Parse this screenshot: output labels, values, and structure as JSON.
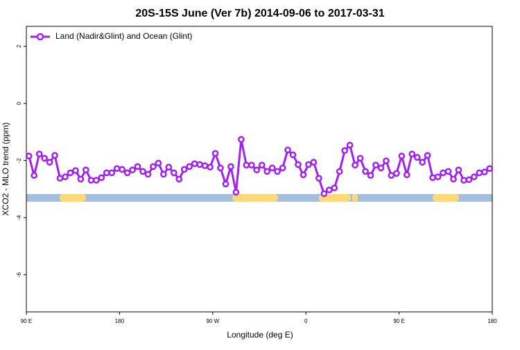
{
  "chart_data": {
    "type": "line",
    "title": "20S-15S June (Ver 7b)   2014-09-06 to 2017-03-31",
    "x_label": "Longitude (deg E)",
    "y_label": "XCO2 - MLO trend (ppm)",
    "x": [
      92.5,
      97.5,
      102.5,
      107.5,
      112.5,
      117.5,
      122.5,
      127.5,
      132.5,
      137.5,
      142.5,
      147.5,
      152.5,
      157.5,
      162.5,
      167.5,
      172.5,
      177.5,
      182.5,
      187.5,
      192.5,
      197.5,
      202.5,
      207.5,
      212.5,
      217.5,
      222.5,
      227.5,
      232.5,
      237.5,
      242.5,
      247.5,
      252.5,
      257.5,
      262.5,
      267.5,
      272.5,
      277.5,
      282.5,
      287.5,
      292.5,
      297.5,
      302.5,
      307.5,
      312.5,
      317.5,
      322.5,
      327.5,
      332.5,
      337.5,
      342.5,
      347.5,
      352.5,
      357.5,
      362.5,
      367.5,
      372.5,
      377.5,
      382.5,
      387.5,
      392.5,
      397.5,
      402.5,
      407.5,
      412.5,
      417.5,
      422.5,
      427.5,
      432.5,
      437.5,
      442.5,
      447.5,
      452.5,
      457.5,
      462.5,
      467.5,
      472.5,
      477.5,
      482.5,
      487.5,
      492.5,
      497.5,
      502.5,
      507.5,
      512.5,
      517.5,
      522.5,
      527.5,
      532.5,
      537.5
    ],
    "series": [
      {
        "name": "Land (Nadir&Glint) and Ocean (Glint)",
        "color": "#a020f0",
        "values": [
          -1.84,
          -2.52,
          -1.77,
          -1.92,
          -2.06,
          -1.82,
          -2.62,
          -2.57,
          -2.43,
          -2.35,
          -2.65,
          -2.33,
          -2.69,
          -2.69,
          -2.6,
          -2.43,
          -2.43,
          -2.28,
          -2.31,
          -2.43,
          -2.33,
          -2.21,
          -2.38,
          -2.48,
          -2.21,
          -2.09,
          -2.48,
          -2.23,
          -2.43,
          -2.65,
          -2.31,
          -2.21,
          -2.11,
          -2.14,
          -2.18,
          -2.23,
          -1.75,
          -2.26,
          -2.82,
          -2.21,
          -3.11,
          -1.26,
          -2.16,
          -2.16,
          -2.33,
          -2.16,
          -2.38,
          -2.26,
          -2.38,
          -2.26,
          -1.63,
          -1.8,
          -2.14,
          -2.5,
          -2.14,
          -2.06,
          -2.62,
          -3.16,
          -3.03,
          -2.96,
          -2.38,
          -1.65,
          -1.46,
          -2.16,
          -1.92,
          -2.38,
          -2.52,
          -2.16,
          -2.26,
          -2.01,
          -2.52,
          -2.45,
          -1.84,
          -2.5,
          -1.77,
          -1.89,
          -2.06,
          -1.82,
          -2.6,
          -2.57,
          -2.43,
          -2.38,
          -2.65,
          -2.33,
          -2.69,
          -2.67,
          -2.57,
          -2.43,
          -2.4,
          -2.28
        ]
      }
    ],
    "xlim": [
      90,
      540
    ],
    "xticks": [
      {
        "value": 90,
        "label": "90 E"
      },
      180,
      {
        "value": 270,
        "label": "90 W"
      },
      {
        "value": 360,
        "label": "0"
      },
      {
        "value": 450,
        "label": "90 E"
      },
      {
        "value": 540,
        "label": "180"
      }
    ],
    "ylim": [
      -7.3,
      2.7
    ],
    "yticks": [
      2,
      0,
      -2,
      -4,
      -6
    ],
    "legend": "top-left"
  }
}
